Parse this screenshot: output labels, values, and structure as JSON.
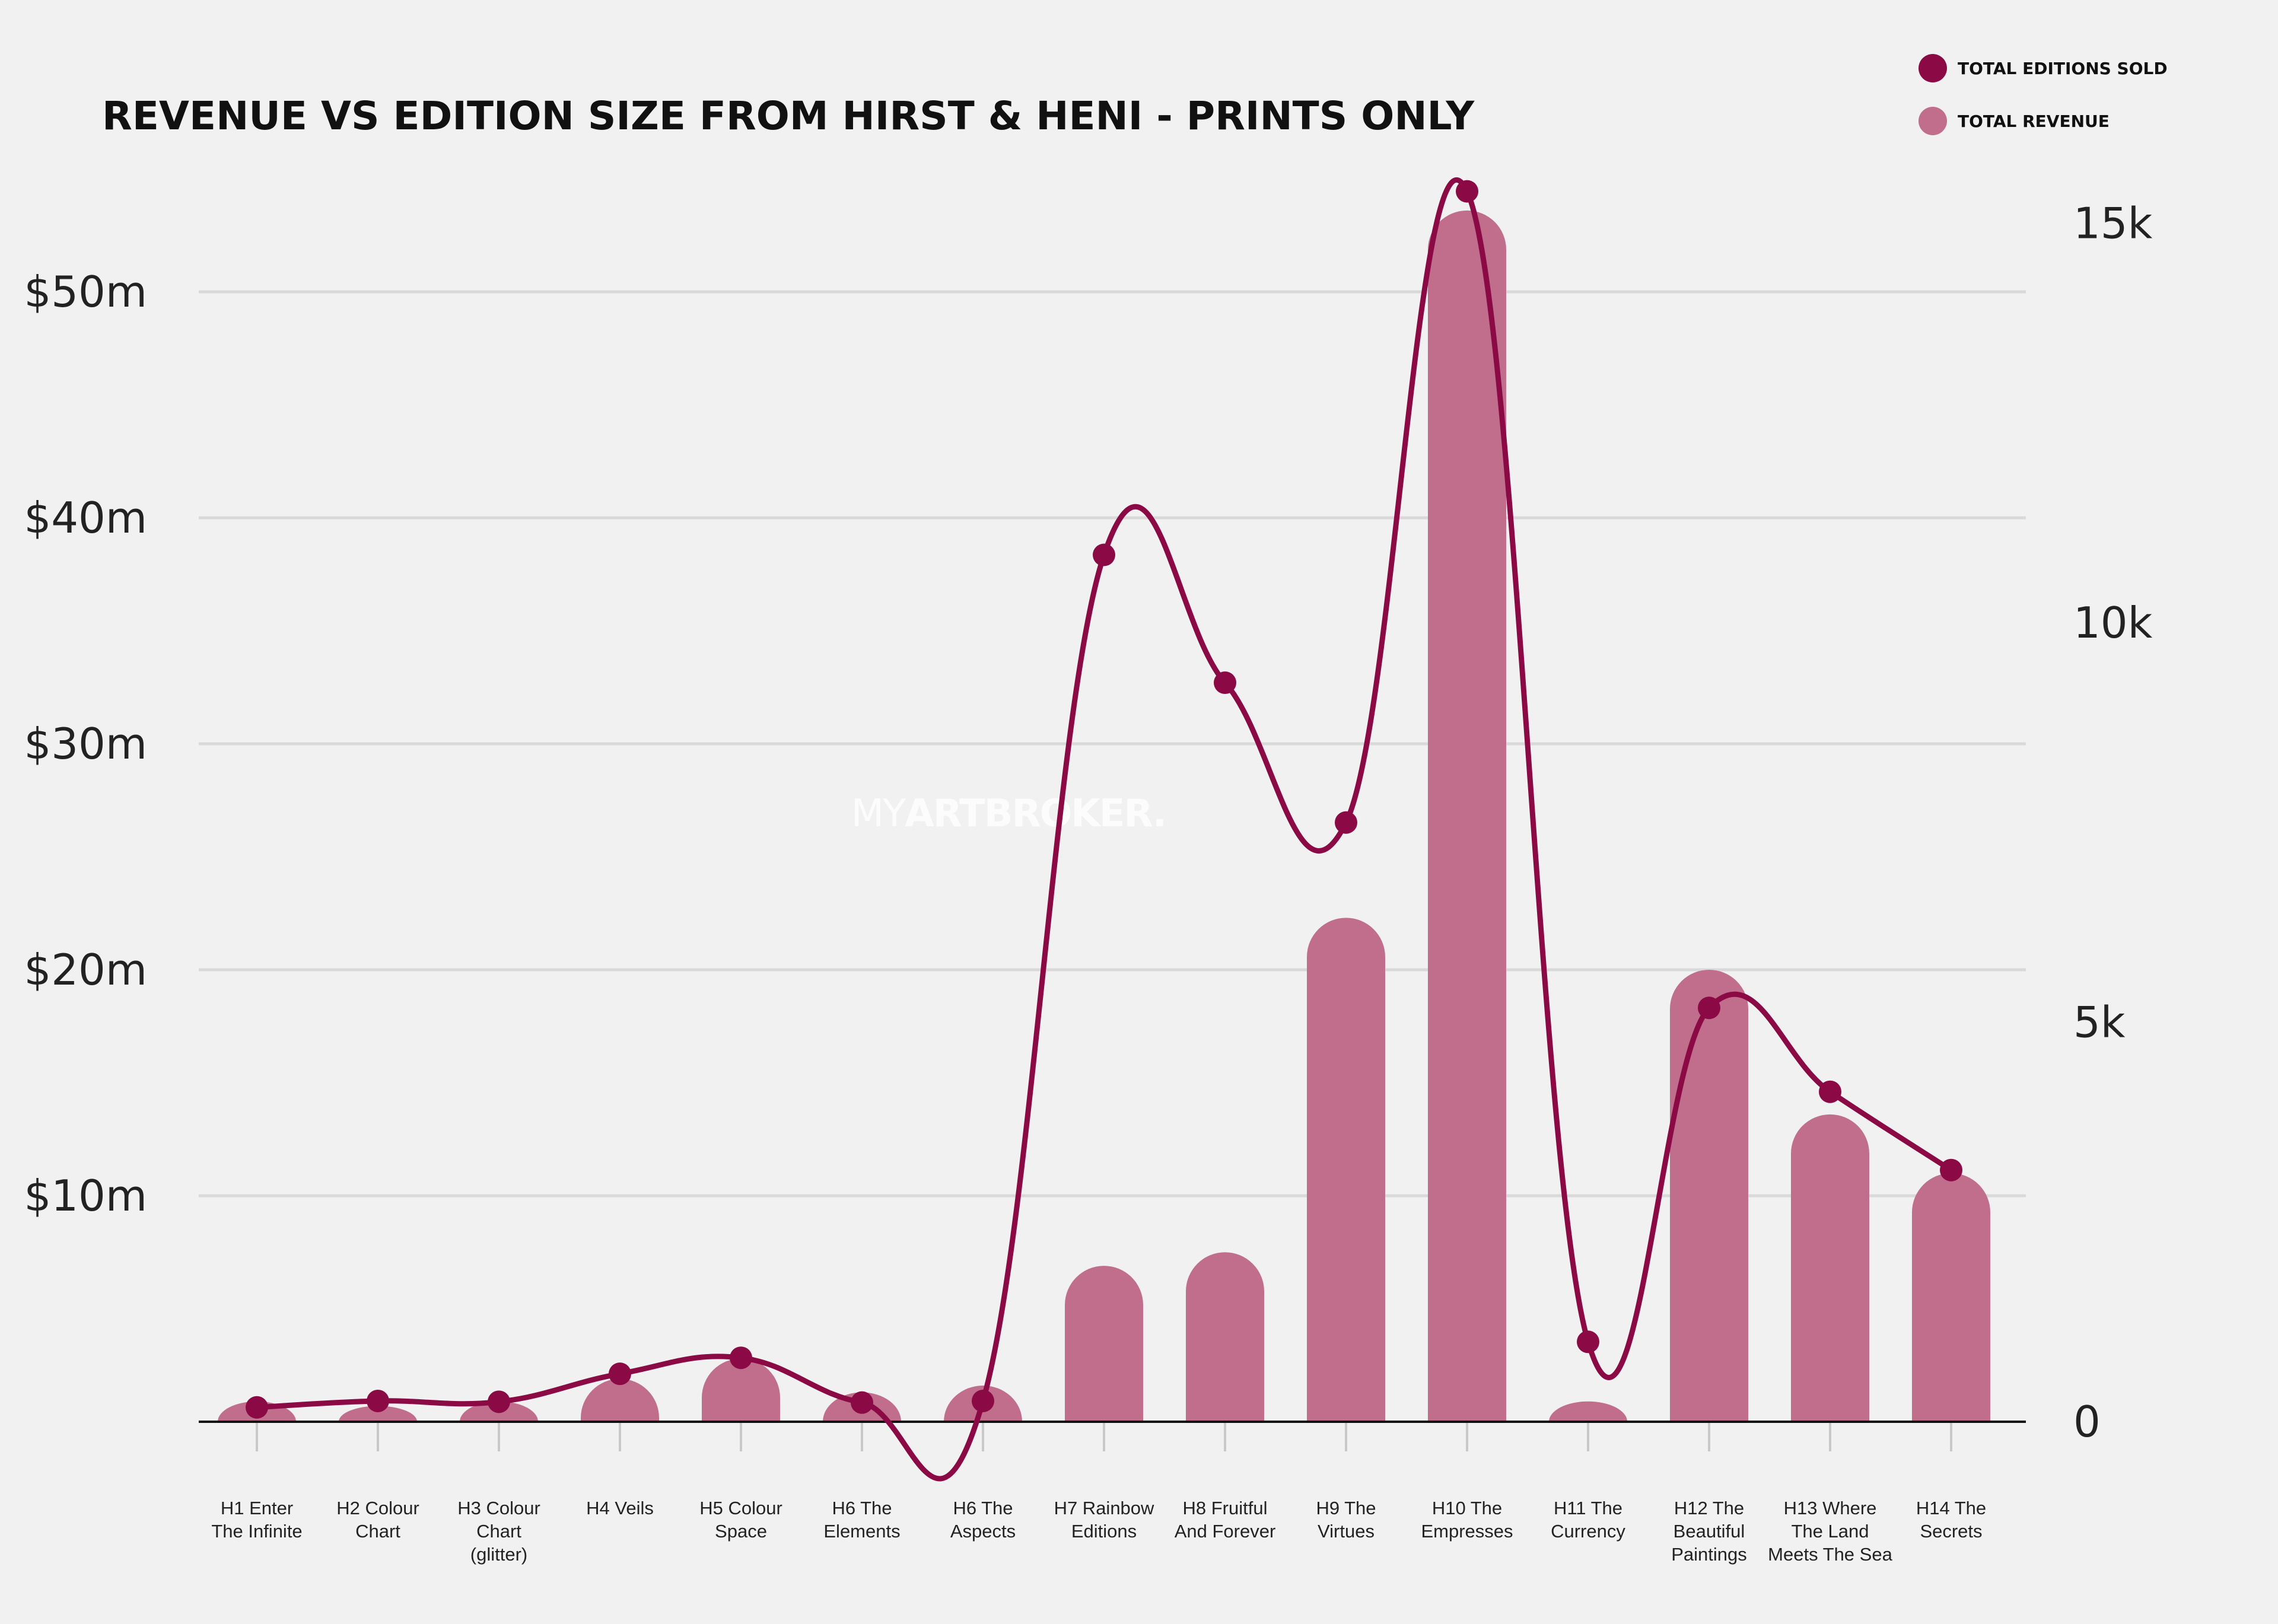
{
  "chart_data": {
    "type": "bar",
    "title": "REVENUE VS EDITION SIZE FROM HIRST & HENI - PRINTS ONLY",
    "watermark": {
      "prefix": "MY",
      "main": "ARTBROKER."
    },
    "categories": [
      [
        "H1 Enter",
        "The Infinite"
      ],
      [
        "H2 Colour",
        "Chart"
      ],
      [
        "H3 Colour",
        "Chart",
        "(glitter)"
      ],
      [
        "H4 Veils"
      ],
      [
        "H5 Colour",
        "Space"
      ],
      [
        "H6 The",
        "Elements"
      ],
      [
        "H6 The",
        "Aspects"
      ],
      [
        "H7 Rainbow",
        "Editions"
      ],
      [
        "H8 Fruitful",
        "And Forever"
      ],
      [
        "H9 The",
        "Virtues"
      ],
      [
        "H10 The",
        "Empresses"
      ],
      [
        "H11 The",
        "Currency"
      ],
      [
        "H12 The",
        "Beautiful",
        "Paintings"
      ],
      [
        "H13 Where",
        "The Land",
        "Meets The Sea"
      ],
      [
        "H14 The",
        "Secrets"
      ]
    ],
    "series": [
      {
        "name": "TOTAL REVENUE",
        "type": "bar",
        "axis": "left",
        "color": "#c06e8b",
        "values": [
          0.9,
          0.7,
          0.9,
          1.9,
          2.8,
          1.3,
          1.6,
          6.9,
          7.5,
          22.3,
          53.6,
          0.9,
          20.0,
          13.6,
          11.0
        ]
      },
      {
        "name": "TOTAL EDITIONS SOLD",
        "type": "line",
        "axis": "right",
        "color": "#8b0a45",
        "values": [
          180,
          260,
          250,
          600,
          800,
          240,
          260,
          10850,
          9250,
          7500,
          15400,
          1000,
          5180,
          4130,
          3150
        ]
      }
    ],
    "y_left": {
      "min": 0,
      "max": 55,
      "ticks": [
        10,
        20,
        30,
        40,
        50
      ],
      "tick_labels": [
        "$10m",
        "$20m",
        "$30m",
        "$40m",
        "$50m"
      ],
      "grid": true
    },
    "y_right": {
      "min": 0,
      "max": 15500,
      "ticks": [
        0,
        5000,
        10000,
        15000
      ],
      "tick_labels": [
        "0",
        "5k",
        "10k",
        "15k"
      ]
    },
    "legend": {
      "position": "top-right",
      "items": [
        "TOTAL EDITIONS SOLD",
        "TOTAL REVENUE"
      ]
    }
  }
}
